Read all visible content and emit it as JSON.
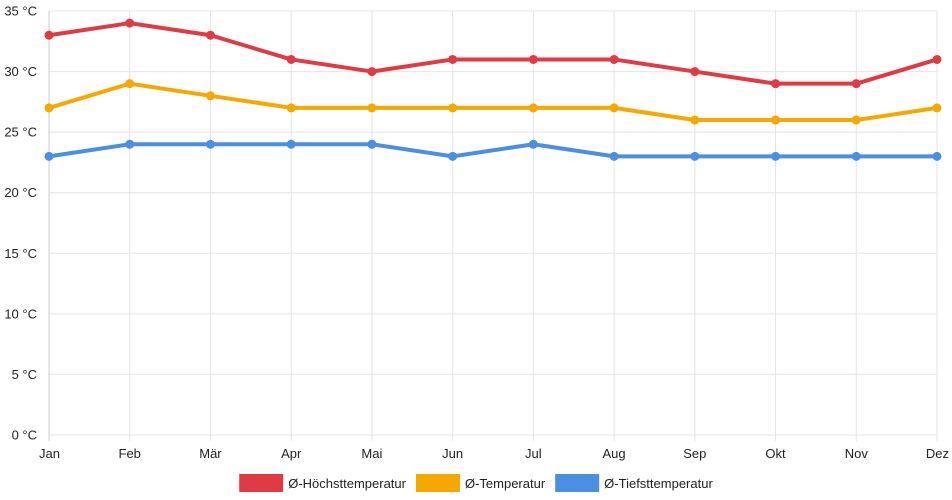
{
  "chart_data": {
    "type": "line",
    "title": "",
    "xlabel": "",
    "ylabel": "",
    "categories": [
      "Jan",
      "Feb",
      "Mär",
      "Apr",
      "Mai",
      "Jun",
      "Jul",
      "Aug",
      "Sep",
      "Okt",
      "Nov",
      "Dez"
    ],
    "ylim": [
      0,
      35
    ],
    "yticks": [
      0,
      5,
      10,
      15,
      20,
      25,
      30,
      35
    ],
    "y_unit": " °C",
    "grid": true,
    "legend_position": "bottom",
    "series": [
      {
        "name": "Ø-Höchsttemperatur",
        "color": "#e03a44",
        "values": [
          33,
          34,
          33,
          31,
          30,
          31,
          31,
          31,
          30,
          29,
          29,
          31
        ]
      },
      {
        "name": "Ø-Temperatur",
        "color": "#f6a800",
        "values": [
          27,
          29,
          28,
          27,
          27,
          27,
          27,
          27,
          26,
          26,
          26,
          27
        ]
      },
      {
        "name": "Ø-Tiefsttemperatur",
        "color": "#4a8fe0",
        "values": [
          23,
          24,
          24,
          24,
          24,
          23,
          24,
          23,
          23,
          23,
          23,
          23
        ]
      }
    ]
  }
}
